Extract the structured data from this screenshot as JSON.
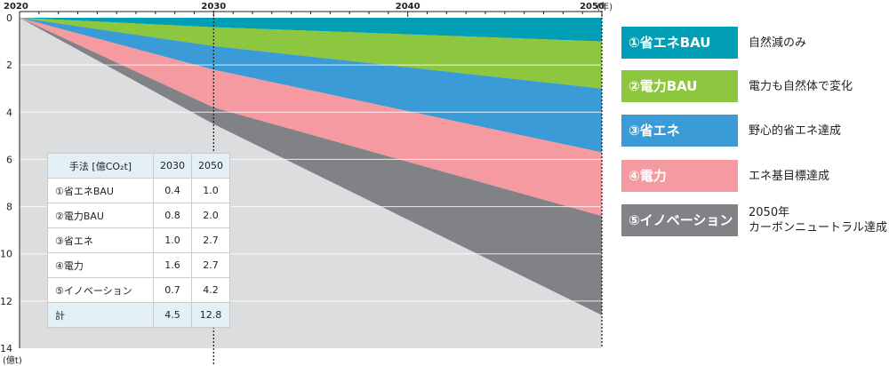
{
  "chart_data": {
    "type": "area",
    "stacked": true,
    "x": [
      2020,
      2030,
      2050
    ],
    "xlim": [
      2020,
      2050
    ],
    "ylim": [
      0,
      14
    ],
    "y_inverted": true,
    "x_ticks": [
      "2020",
      "2030",
      "2040",
      "2050"
    ],
    "x_unit_label": "(年)",
    "y_ticks": [
      "0",
      "2",
      "4",
      "6",
      "8",
      "10",
      "12",
      "14"
    ],
    "y_unit_label": "(億t)",
    "reference_line_x": 2030,
    "series": [
      {
        "name": "①省エネBAU",
        "values": [
          0,
          0.4,
          1.0
        ],
        "color": "#009fb5"
      },
      {
        "name": "②電力BAU",
        "values": [
          0,
          0.8,
          2.0
        ],
        "color": "#8dc63f"
      },
      {
        "name": "③省エネ",
        "values": [
          0,
          1.0,
          2.7
        ],
        "color": "#3a9bd6"
      },
      {
        "name": "④電力",
        "values": [
          0,
          1.6,
          2.7
        ],
        "color": "#f49aa0"
      },
      {
        "name": "⑤イノベーション",
        "values": [
          0,
          0.7,
          4.2
        ],
        "color": "#808285"
      }
    ],
    "background_color": "#dcdddf"
  },
  "legend": [
    {
      "label": "①省エネBAU",
      "desc": [
        "自然減のみ"
      ],
      "color": "#009fb5"
    },
    {
      "label": "②電力BAU",
      "desc": [
        "電力も自然体で変化"
      ],
      "color": "#8dc63f"
    },
    {
      "label": "③省エネ",
      "desc": [
        "野心的省エネ達成"
      ],
      "color": "#3a9bd6"
    },
    {
      "label": "④電力",
      "desc": [
        "エネ基目標達成"
      ],
      "color": "#f49aa0"
    },
    {
      "label": "⑤イノベーション",
      "desc": [
        "2050年",
        "カーボンニュートラル達成"
      ],
      "color": "#808285"
    }
  ],
  "table": {
    "header": {
      "method": "手法 [億CO₂t]",
      "y2030": "2030",
      "y2050": "2050"
    },
    "rows": [
      {
        "method": "①省エネBAU",
        "y2030": "0.4",
        "y2050": "1.0"
      },
      {
        "method": "②電力BAU",
        "y2030": "0.8",
        "y2050": "2.0"
      },
      {
        "method": "③省エネ",
        "y2030": "1.0",
        "y2050": "2.7"
      },
      {
        "method": "④電力",
        "y2030": "1.6",
        "y2050": "2.7"
      },
      {
        "method": "⑤イノベーション",
        "y2030": "0.7",
        "y2050": "4.2"
      }
    ],
    "total": {
      "method": "計",
      "y2030": "4.5",
      "y2050": "12.8"
    }
  }
}
